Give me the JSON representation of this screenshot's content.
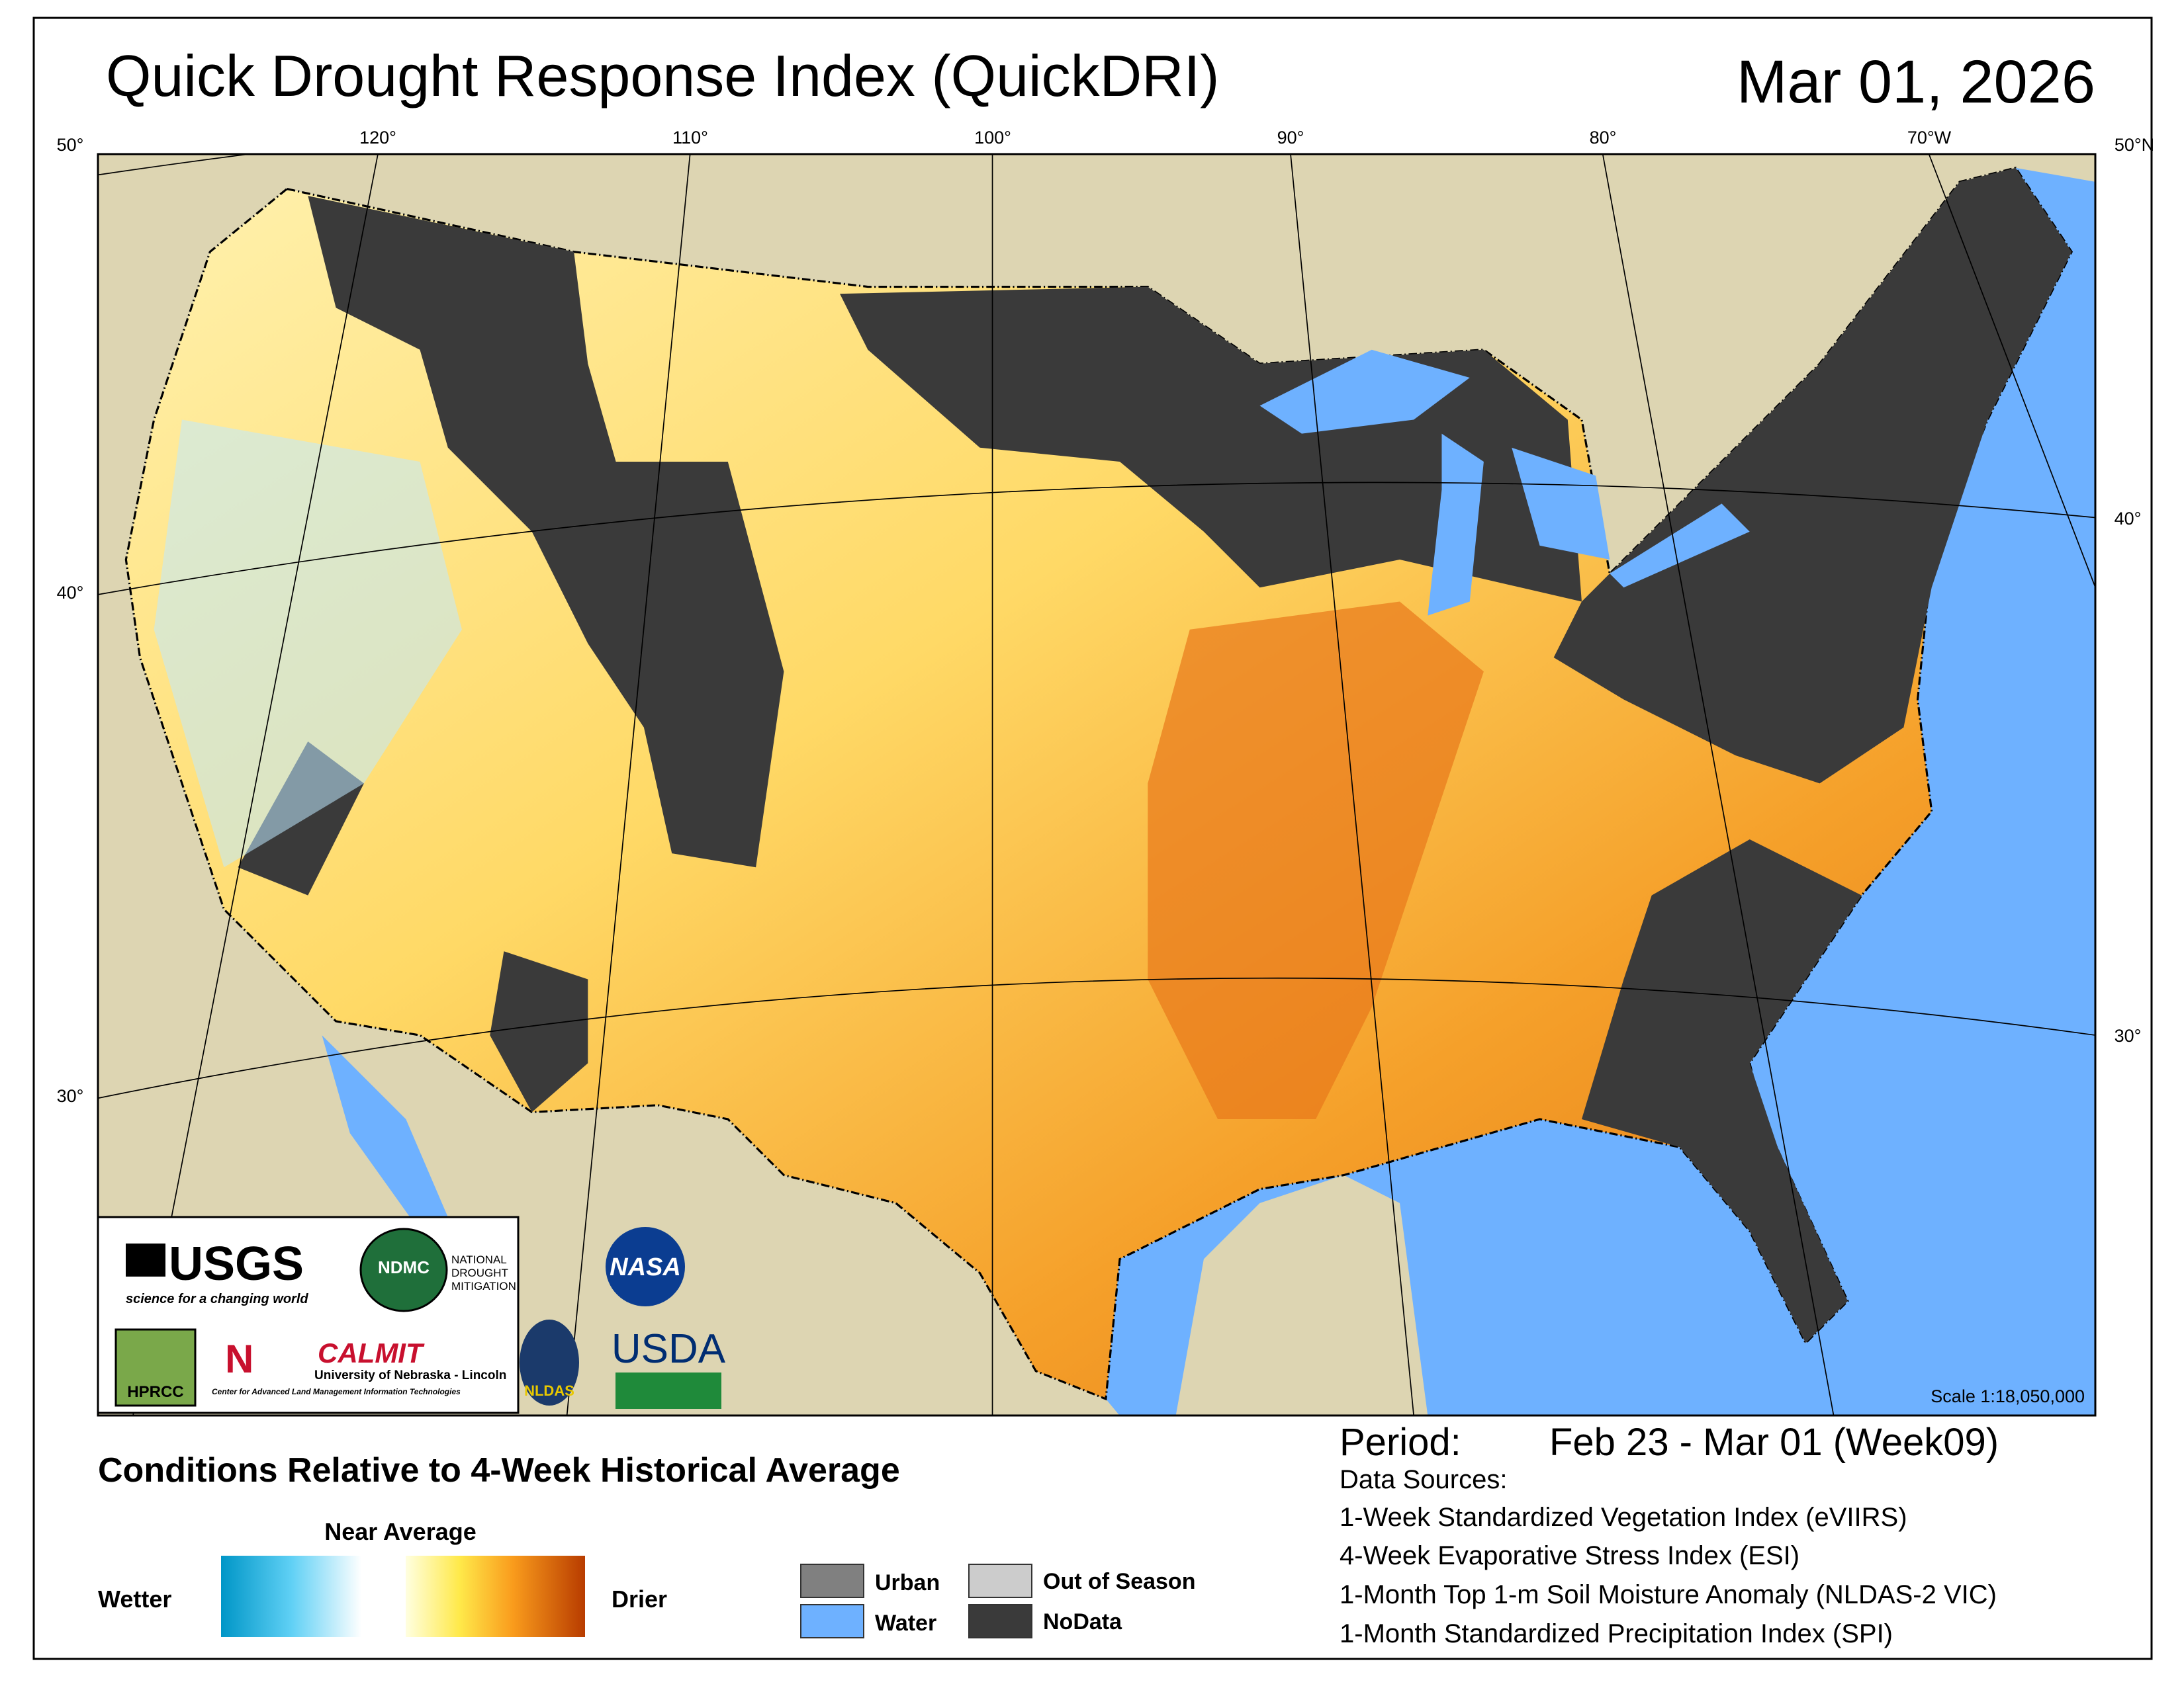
{
  "header": {
    "title": "Quick Drought Response Index (QuickDRI)",
    "date": "Mar 01, 2026"
  },
  "graticule": {
    "top": [
      "50°",
      "120°",
      "110°",
      "100°",
      "90°",
      "80°",
      "70°W",
      "50°N"
    ],
    "left": [
      "40°",
      "30°"
    ],
    "right": [
      "40°",
      "30°"
    ]
  },
  "logos": {
    "usgs": "USGS",
    "usgs_tagline": "science for a changing world",
    "ndmc": "NDMC",
    "ndmc_name": "NATIONAL DROUGHT MITIGATION CENTER",
    "nasa": "NASA",
    "hprcc": "HPRCC",
    "calmit": "CALMIT",
    "calmit_university": "University of Nebraska - Lincoln",
    "calmit_name": "Center for Advanced Land Management Information Technologies",
    "nldas": "NLDAS",
    "usda": "USDA"
  },
  "scale": "Scale 1:18,050,000",
  "legend": {
    "title": "Conditions Relative to 4-Week Historical Average",
    "near_average": "Near Average",
    "wetter": "Wetter",
    "drier": "Drier",
    "categories": [
      "Urban",
      "Water",
      "Out of Season",
      "NoData"
    ]
  },
  "period": {
    "label": "Period:",
    "value": "Feb 23 - Mar 01 (Week09)"
  },
  "data_sources": {
    "title": "Data Sources:",
    "items": [
      "1-Week Standardized Vegetation Index (eVIIRS)",
      "4-Week Evaporative Stress Index (ESI)",
      "1-Month Top 1-m Soil Moisture Anomaly (NLDAS-2 VIC)",
      "1-Month Standardized Precipitation Index (SPI)"
    ]
  }
}
